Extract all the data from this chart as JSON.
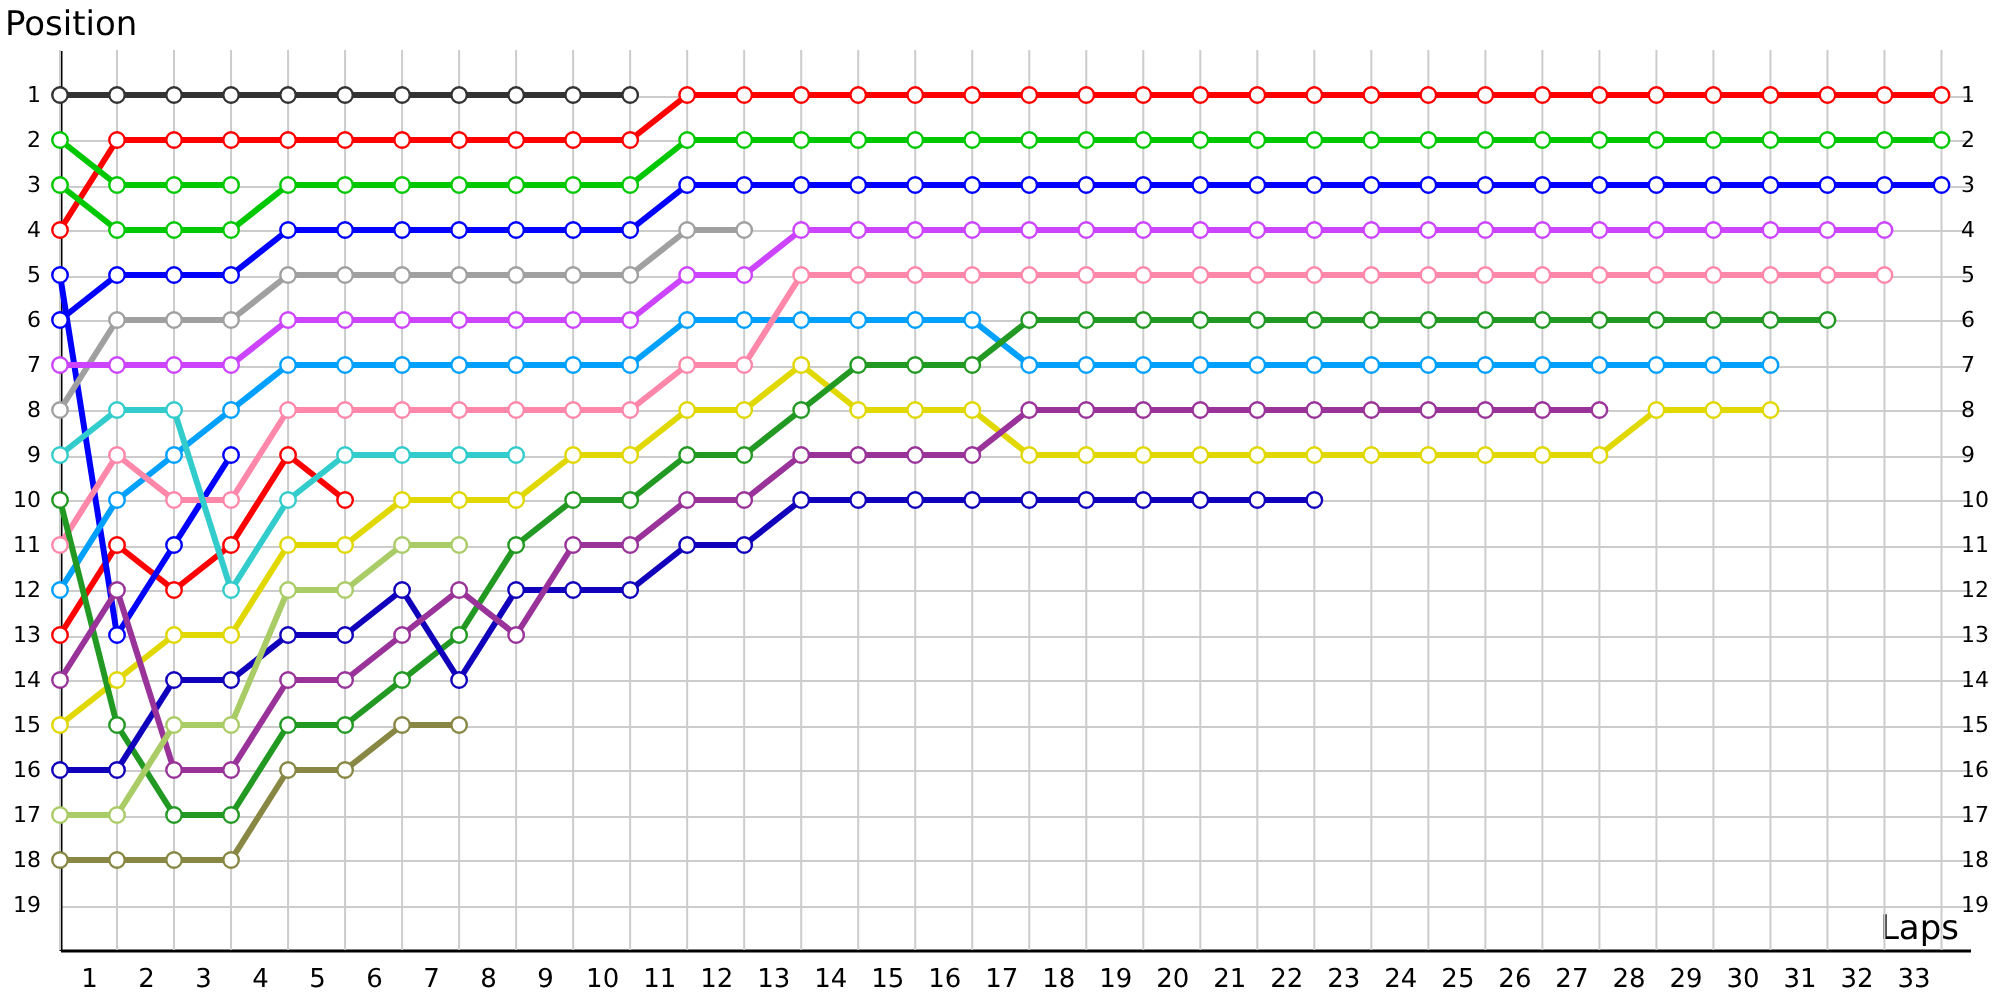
{
  "chart_data": {
    "type": "line",
    "xlabel": "Laps",
    "ylabel": "Position",
    "marker": "circle",
    "line_style": "solid",
    "grid": true,
    "legend": false,
    "x": [
      0,
      1,
      2,
      3,
      4,
      5,
      6,
      7,
      8,
      9,
      10,
      11,
      12,
      13,
      14,
      15,
      16,
      17,
      18,
      19,
      20,
      21,
      22,
      23,
      24,
      25,
      26,
      27,
      28,
      29,
      30,
      31,
      32,
      33
    ],
    "xlim": [
      0,
      33.5
    ],
    "xticks": [
      {
        "value": 0.5,
        "label": "1"
      },
      {
        "value": 1.5,
        "label": "2"
      },
      {
        "value": 2.5,
        "label": "3"
      },
      {
        "value": 3.5,
        "label": "4"
      },
      {
        "value": 4.5,
        "label": "5"
      },
      {
        "value": 5.5,
        "label": "6"
      },
      {
        "value": 6.5,
        "label": "7"
      },
      {
        "value": 7.5,
        "label": "8"
      },
      {
        "value": 8.5,
        "label": "9"
      },
      {
        "value": 9.5,
        "label": "10"
      },
      {
        "value": 10.5,
        "label": "11"
      },
      {
        "value": 11.5,
        "label": "12"
      },
      {
        "value": 12.5,
        "label": "13"
      },
      {
        "value": 13.5,
        "label": "14"
      },
      {
        "value": 14.5,
        "label": "15"
      },
      {
        "value": 15.5,
        "label": "16"
      },
      {
        "value": 16.5,
        "label": "17"
      },
      {
        "value": 17.5,
        "label": "18"
      },
      {
        "value": 18.5,
        "label": "19"
      },
      {
        "value": 19.5,
        "label": "20"
      },
      {
        "value": 20.5,
        "label": "21"
      },
      {
        "value": 21.5,
        "label": "22"
      },
      {
        "value": 22.5,
        "label": "23"
      },
      {
        "value": 23.5,
        "label": "24"
      },
      {
        "value": 24.5,
        "label": "25"
      },
      {
        "value": 25.5,
        "label": "26"
      },
      {
        "value": 26.5,
        "label": "27"
      },
      {
        "value": 27.5,
        "label": "28"
      },
      {
        "value": 28.5,
        "label": "29"
      },
      {
        "value": 29.5,
        "label": "30"
      },
      {
        "value": 30.5,
        "label": "31"
      },
      {
        "value": 31.5,
        "label": "32"
      },
      {
        "value": 32.5,
        "label": "33"
      }
    ],
    "ylim": [
      20,
      0
    ],
    "yticks": [
      1,
      2,
      3,
      4,
      5,
      6,
      7,
      8,
      9,
      10,
      11,
      12,
      13,
      14,
      15,
      16,
      17,
      18,
      19
    ],
    "y2lim": [
      20,
      0
    ],
    "y2ticks": [
      1,
      2,
      3,
      4,
      5,
      6,
      7,
      8,
      9,
      10,
      11,
      12,
      13,
      14,
      15,
      16,
      17,
      18,
      19
    ],
    "series": [
      {
        "color": "#333333",
        "values": [
          1,
          1,
          1,
          1,
          1,
          1,
          1,
          1,
          1,
          1,
          1,
          null,
          null,
          null,
          null,
          null,
          null,
          null,
          null,
          null,
          null,
          null,
          null,
          null,
          null,
          null,
          null,
          null,
          null,
          null,
          null,
          null,
          null,
          null
        ]
      },
      {
        "color": "#ff0000",
        "values": [
          4,
          2,
          2,
          2,
          2,
          2,
          2,
          2,
          2,
          2,
          2,
          1,
          1,
          1,
          1,
          1,
          1,
          1,
          1,
          1,
          1,
          1,
          1,
          1,
          1,
          1,
          1,
          1,
          1,
          1,
          1,
          1,
          1,
          1
        ]
      },
      {
        "color": "#ff0000",
        "values": [
          13,
          11,
          12,
          11,
          9,
          10,
          null,
          null,
          null,
          null,
          null,
          null,
          null,
          null,
          null,
          null,
          null,
          null,
          null,
          null,
          null,
          null,
          null,
          null,
          null,
          null,
          null,
          null,
          null,
          null,
          null,
          null,
          null,
          null
        ]
      },
      {
        "color": "#00c800",
        "values": [
          2,
          3,
          3,
          3,
          null,
          null,
          null,
          null,
          null,
          null,
          null,
          null,
          null,
          null,
          null,
          null,
          null,
          null,
          null,
          null,
          null,
          null,
          null,
          null,
          null,
          null,
          null,
          null,
          null,
          null,
          null,
          null,
          null,
          null
        ]
      },
      {
        "color": "#00c800",
        "values": [
          3,
          4,
          4,
          4,
          3,
          3,
          3,
          3,
          3,
          3,
          3,
          2,
          2,
          2,
          2,
          2,
          2,
          2,
          2,
          2,
          2,
          2,
          2,
          2,
          2,
          2,
          2,
          2,
          2,
          2,
          2,
          2,
          2,
          2
        ]
      },
      {
        "color": "#0000ff",
        "values": [
          6,
          5,
          5,
          5,
          4,
          4,
          4,
          4,
          4,
          4,
          4,
          3,
          3,
          3,
          3,
          3,
          3,
          3,
          3,
          3,
          3,
          3,
          3,
          3,
          3,
          3,
          3,
          3,
          3,
          3,
          3,
          3,
          3,
          3
        ]
      },
      {
        "color": "#0000ff",
        "values": [
          5,
          13,
          11,
          9,
          null,
          null,
          null,
          null,
          null,
          null,
          null,
          null,
          null,
          null,
          null,
          null,
          null,
          null,
          null,
          null,
          null,
          null,
          null,
          null,
          null,
          null,
          null,
          null,
          null,
          null,
          null,
          null,
          null,
          null
        ]
      },
      {
        "color": "#a0a0a0",
        "values": [
          8,
          6,
          6,
          6,
          5,
          5,
          5,
          5,
          5,
          5,
          5,
          4,
          4,
          null,
          null,
          null,
          null,
          null,
          null,
          null,
          null,
          null,
          null,
          null,
          null,
          null,
          null,
          null,
          null,
          null,
          null,
          null,
          null,
          null
        ]
      },
      {
        "color": "#cc44ff",
        "values": [
          7,
          7,
          7,
          7,
          6,
          6,
          6,
          6,
          6,
          6,
          6,
          5,
          5,
          4,
          4,
          4,
          4,
          4,
          4,
          4,
          4,
          4,
          4,
          4,
          4,
          4,
          4,
          4,
          4,
          4,
          4,
          4,
          4,
          null
        ]
      },
      {
        "color": "#00a0ff",
        "values": [
          12,
          10,
          9,
          8,
          7,
          7,
          7,
          7,
          7,
          7,
          7,
          6,
          6,
          6,
          6,
          6,
          6,
          7,
          7,
          7,
          7,
          7,
          7,
          7,
          7,
          7,
          7,
          7,
          7,
          7,
          7,
          null,
          null,
          null
        ]
      },
      {
        "color": "#ff88aa",
        "values": [
          11,
          9,
          10,
          10,
          8,
          8,
          8,
          8,
          8,
          8,
          8,
          7,
          7,
          5,
          5,
          5,
          5,
          5,
          5,
          5,
          5,
          5,
          5,
          5,
          5,
          5,
          5,
          5,
          5,
          5,
          5,
          5,
          5,
          null
        ]
      },
      {
        "color": "#33cccc",
        "values": [
          9,
          8,
          8,
          12,
          10,
          9,
          9,
          9,
          9,
          null,
          null,
          null,
          null,
          null,
          null,
          null,
          null,
          null,
          null,
          null,
          null,
          null,
          null,
          null,
          null,
          null,
          null,
          null,
          null,
          null,
          null,
          null,
          null,
          null
        ]
      },
      {
        "color": "#e0d800",
        "values": [
          15,
          14,
          13,
          13,
          11,
          11,
          10,
          10,
          10,
          9,
          9,
          8,
          8,
          7,
          8,
          8,
          8,
          9,
          9,
          9,
          9,
          9,
          9,
          9,
          9,
          9,
          9,
          9,
          8,
          8,
          8,
          null,
          null,
          null
        ]
      },
      {
        "color": "#229922",
        "values": [
          10,
          15,
          17,
          17,
          15,
          15,
          14,
          13,
          11,
          10,
          10,
          9,
          9,
          8,
          7,
          7,
          7,
          6,
          6,
          6,
          6,
          6,
          6,
          6,
          6,
          6,
          6,
          6,
          6,
          6,
          6,
          6,
          null,
          null
        ]
      },
      {
        "color": "#1100bb",
        "values": [
          16,
          16,
          14,
          14,
          13,
          13,
          12,
          14,
          12,
          12,
          12,
          11,
          11,
          10,
          10,
          10,
          10,
          10,
          10,
          10,
          10,
          10,
          10,
          null,
          null,
          null,
          null,
          null,
          null,
          null,
          null,
          null,
          null,
          null
        ]
      },
      {
        "color": "#993399",
        "values": [
          14,
          12,
          16,
          16,
          14,
          14,
          13,
          12,
          13,
          11,
          11,
          10,
          10,
          9,
          9,
          9,
          9,
          8,
          8,
          8,
          8,
          8,
          8,
          8,
          8,
          8,
          8,
          8,
          null,
          null,
          null,
          null,
          null,
          null
        ]
      },
      {
        "color": "#aacc66",
        "values": [
          17,
          17,
          15,
          15,
          12,
          12,
          11,
          11,
          null,
          null,
          null,
          null,
          null,
          null,
          null,
          null,
          null,
          null,
          null,
          null,
          null,
          null,
          null,
          null,
          null,
          null,
          null,
          null,
          null,
          null,
          null,
          null,
          null,
          null
        ]
      },
      {
        "color": "#888844",
        "values": [
          18,
          18,
          18,
          18,
          16,
          16,
          15,
          15,
          null,
          null,
          null,
          null,
          null,
          null,
          null,
          null,
          null,
          null,
          null,
          null,
          null,
          null,
          null,
          null,
          null,
          null,
          null,
          null,
          null,
          null,
          null,
          null,
          null,
          null
        ]
      }
    ]
  }
}
